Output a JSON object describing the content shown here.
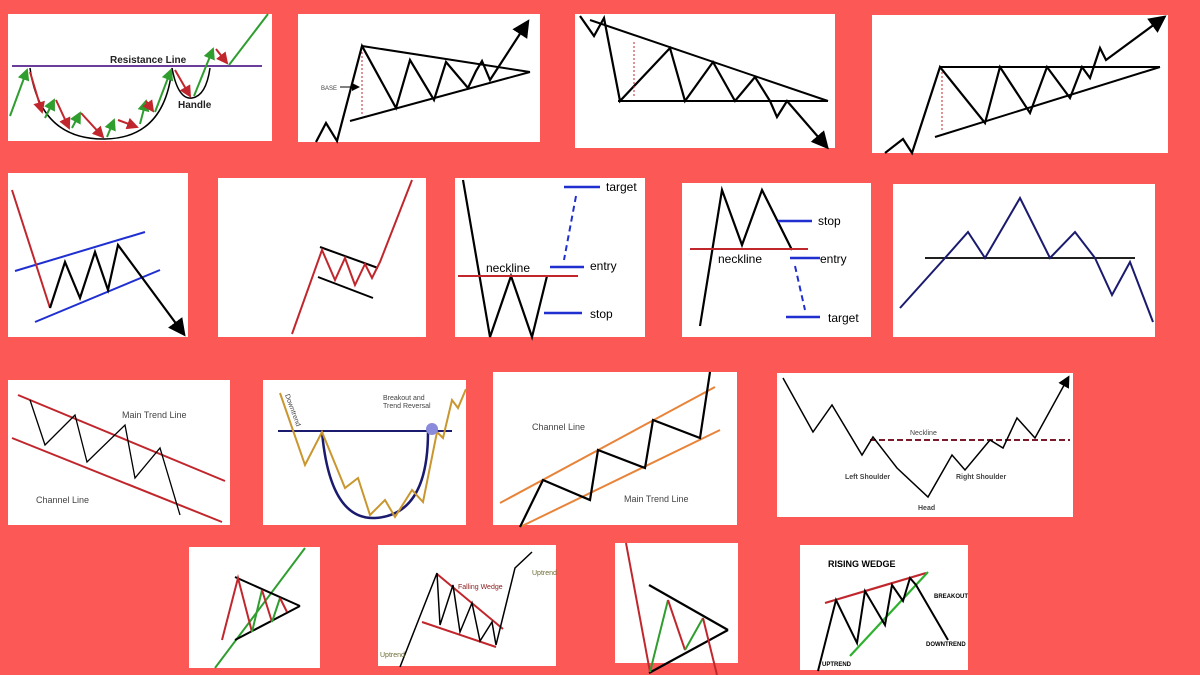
{
  "colors": {
    "background": "#fc5856",
    "panel": "#ffffff",
    "line": "#000000",
    "red": "#c0272d",
    "green": "#2f9e2f",
    "blue": "#1f2fd0",
    "navy": "#1a1a6e",
    "orange": "#e8843a",
    "gold": "#c9962f",
    "purple": "#6a3d9a"
  },
  "panels": {
    "cup_handle": {
      "resistance": "Resistance Line",
      "handle": "Handle"
    },
    "sym_triangle": {
      "base": "BASE"
    },
    "double_bottom": {
      "target": "target",
      "neckline": "neckline",
      "entry": "entry",
      "stop": "stop"
    },
    "double_top": {
      "stop": "stop",
      "neckline": "neckline",
      "entry": "entry",
      "target": "target"
    },
    "desc_channel": {
      "main": "Main Trend Line",
      "channel": "Channel Line"
    },
    "cup": {
      "downtrend": "Downtrend",
      "breakout1": "Breakout and",
      "breakout2": "Trend Reversal"
    },
    "asc_channel": {
      "channel": "Channel Line",
      "main": "Main Trend Line"
    },
    "inverse_hs": {
      "neckline": "Neckline",
      "left": "Left Shoulder",
      "right": "Right Shoulder",
      "head": "Head"
    },
    "falling_wedge": {
      "title": "Falling Wedge",
      "uptrend1": "Uptrend",
      "uptrend2": "Uptrend"
    },
    "rising_wedge": {
      "title": "RISING WEDGE",
      "breakout": "BREAKOUT",
      "downtrend": "DOWNTREND",
      "uptrend": "UPTREND"
    }
  }
}
